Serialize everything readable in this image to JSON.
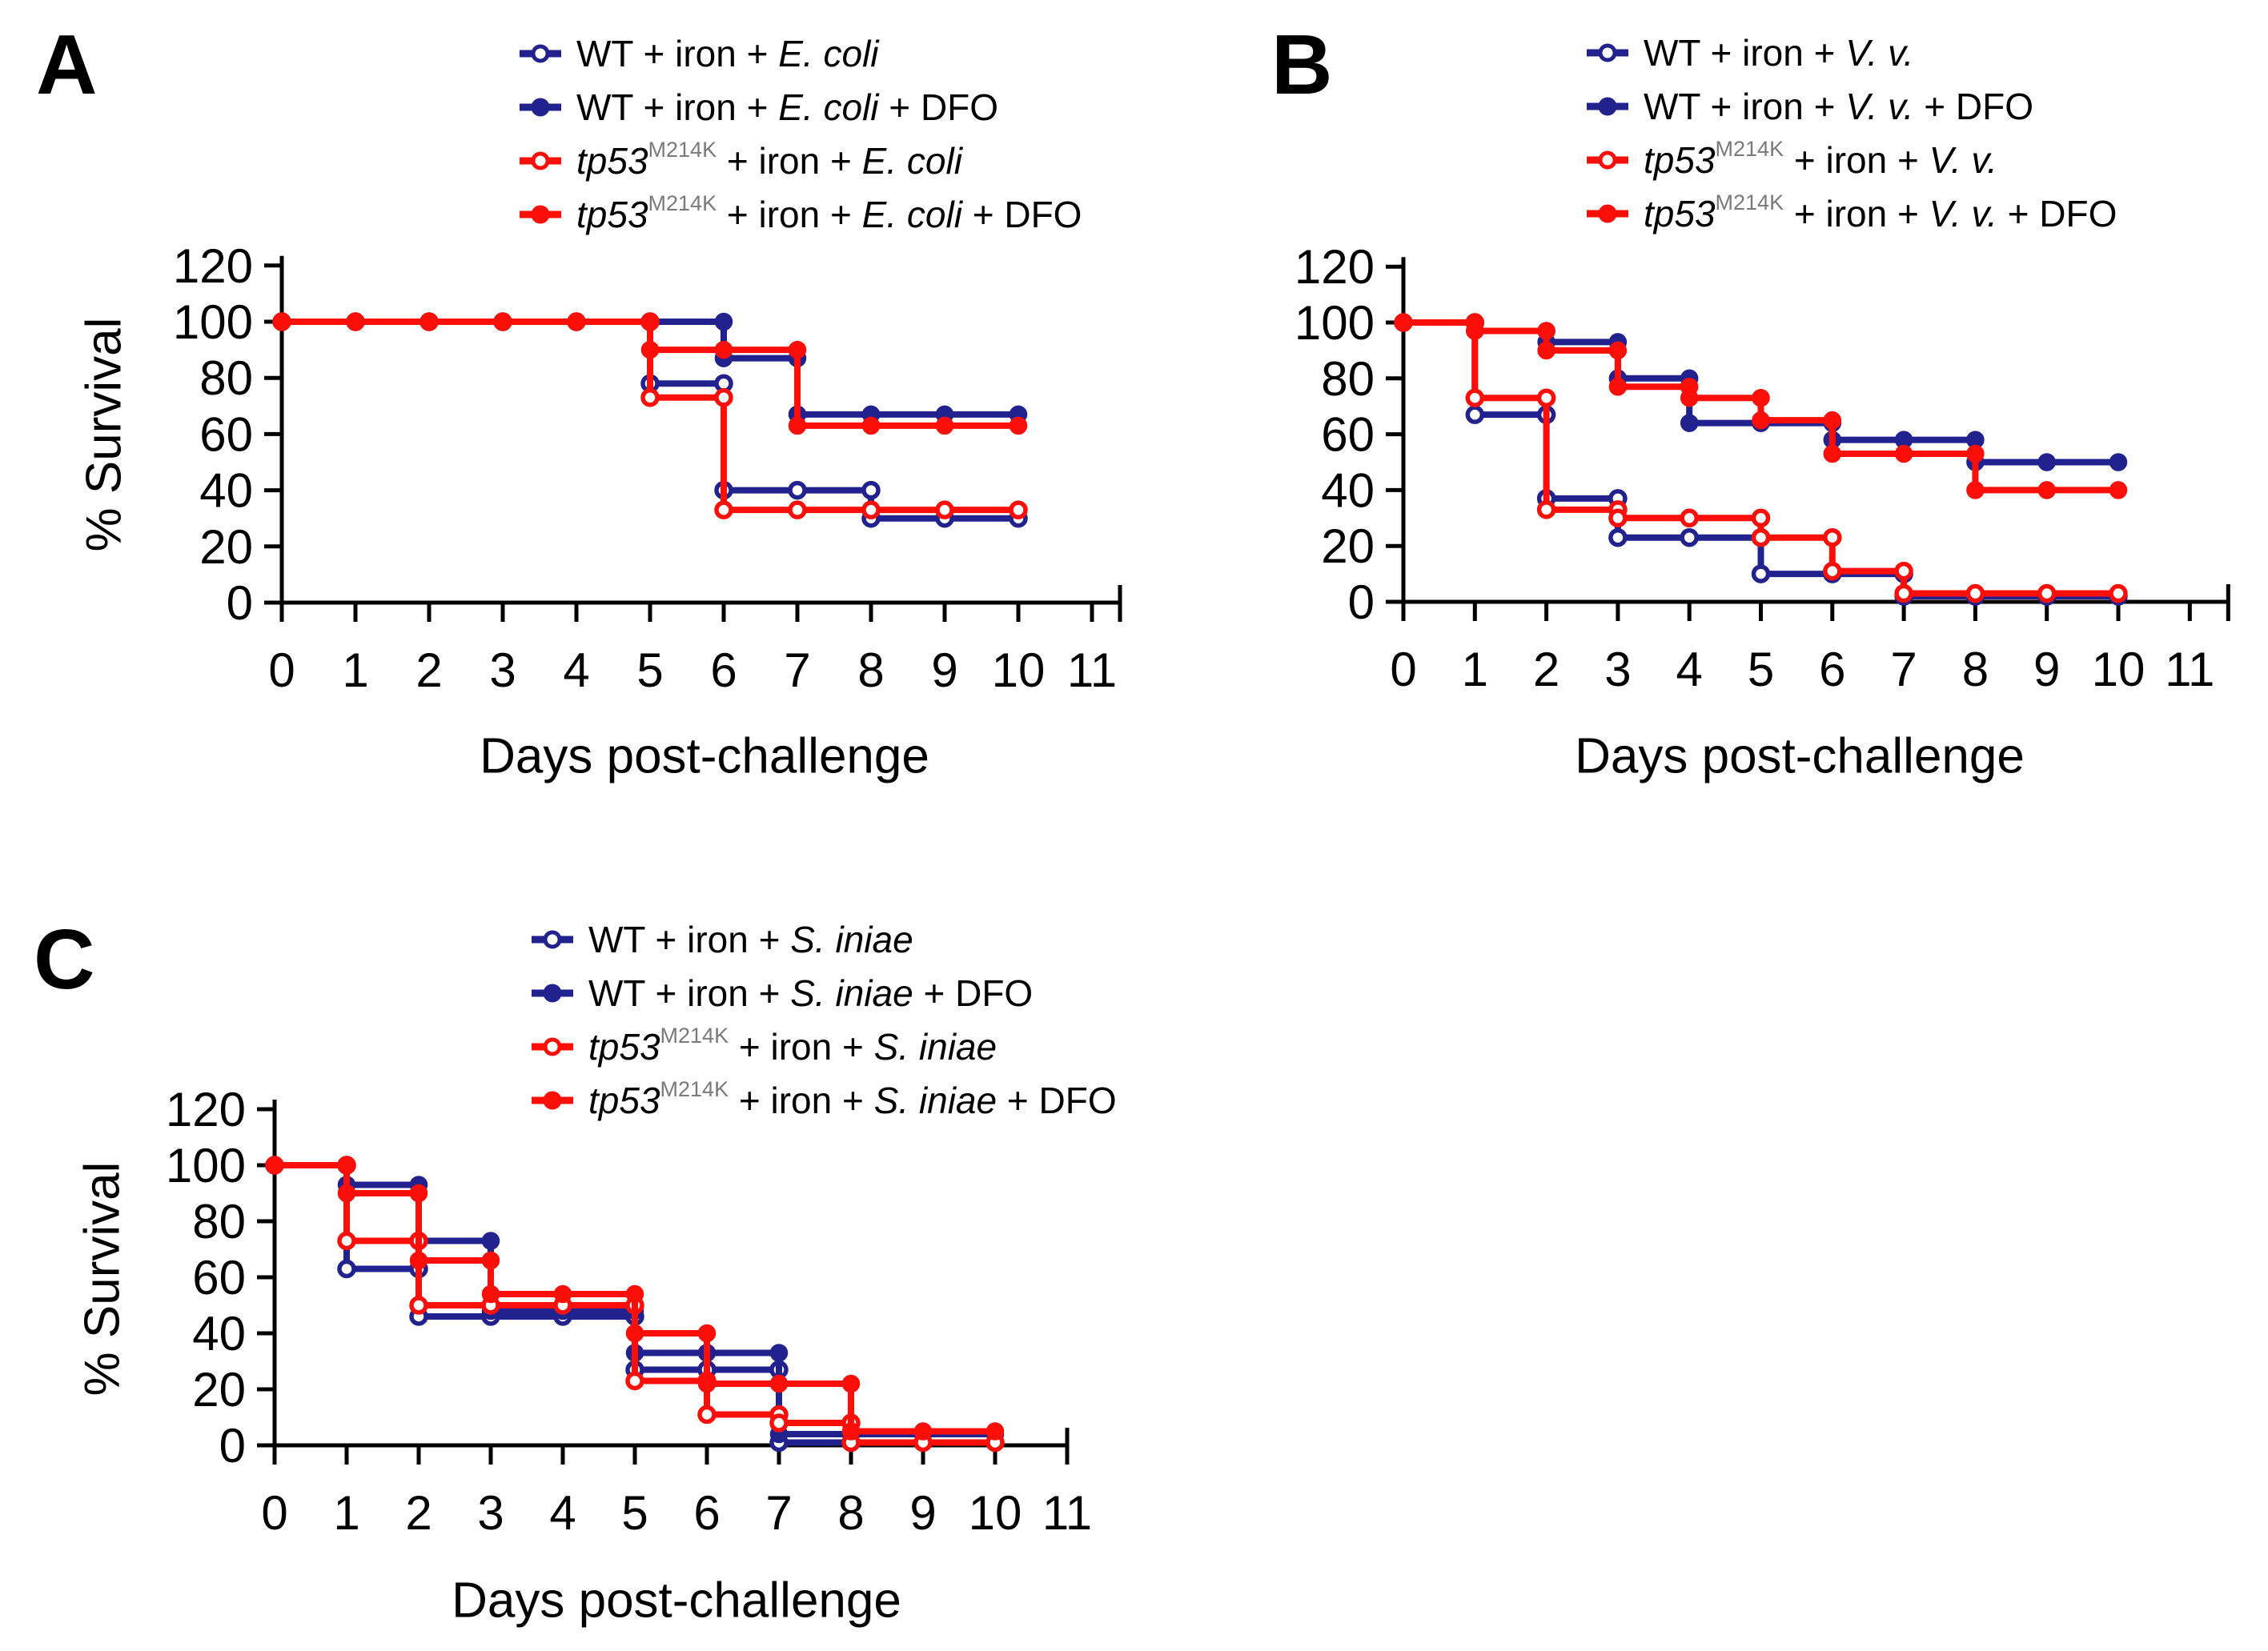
{
  "figure": {
    "description": "Three Kaplan-Meier style survival plots (panels A, B, C) comparing WT and tp53M214K zebrafish given iron and bacterial challenge, with or without DFO.",
    "colors": {
      "wt_navy": "#22228f",
      "mutant_red": "#fb0f08",
      "axis_black": "#000000",
      "background": "#ffffff"
    },
    "panel_letters": [
      "A",
      "B",
      "C"
    ]
  },
  "chart_data": [
    {
      "type": "line",
      "variant": "survival-step",
      "panel_label": "A",
      "xlabel": "Days post-challenge",
      "ylabel": "% Survival",
      "x": [
        0,
        1,
        2,
        3,
        4,
        5,
        6,
        7,
        8,
        9,
        10
      ],
      "xlim": [
        0,
        11
      ],
      "ylim": [
        0,
        120
      ],
      "x_ticks": [
        0,
        1,
        2,
        3,
        4,
        5,
        6,
        7,
        8,
        9,
        10,
        11
      ],
      "y_ticks": [
        0,
        20,
        40,
        60,
        80,
        100,
        120
      ],
      "legend_position": "top",
      "series": [
        {
          "name": "WT + iron + E. coli",
          "color": "#22228f",
          "marker": "open-circle",
          "values": [
            100,
            100,
            100,
            100,
            100,
            78,
            40,
            40,
            30,
            30,
            30
          ],
          "label_segments": [
            {
              "t": "WT + iron + ",
              "s": "n"
            },
            {
              "t": "E. coli",
              "s": "i"
            }
          ]
        },
        {
          "name": "WT + iron + E. coli + DFO",
          "color": "#22228f",
          "marker": "filled-circle",
          "values": [
            100,
            100,
            100,
            100,
            100,
            100,
            87,
            67,
            67,
            67,
            67
          ],
          "label_segments": [
            {
              "t": "WT + iron + ",
              "s": "n"
            },
            {
              "t": "E. coli",
              "s": "i"
            },
            {
              "t": " + DFO",
              "s": "n"
            }
          ]
        },
        {
          "name": "tp53M214K + iron + E. coli",
          "color": "#fb0f08",
          "marker": "open-circle",
          "values": [
            100,
            100,
            100,
            100,
            100,
            73,
            33,
            33,
            33,
            33,
            33
          ],
          "label_segments": [
            {
              "t": "tp53",
              "s": "i"
            },
            {
              "t": "M214K",
              "s": "sup"
            },
            {
              "t": " + iron + ",
              "s": "n"
            },
            {
              "t": "E. coli",
              "s": "i"
            }
          ]
        },
        {
          "name": "tp53M214K + iron + E. coli + DFO",
          "color": "#fb0f08",
          "marker": "filled-circle",
          "values": [
            100,
            100,
            100,
            100,
            100,
            90,
            90,
            63,
            63,
            63,
            63
          ],
          "label_segments": [
            {
              "t": "tp53",
              "s": "i"
            },
            {
              "t": "M214K",
              "s": "sup"
            },
            {
              "t": " + iron + ",
              "s": "n"
            },
            {
              "t": "E. coli",
              "s": "i"
            },
            {
              "t": " + DFO",
              "s": "n"
            }
          ]
        }
      ]
    },
    {
      "type": "line",
      "variant": "survival-step",
      "panel_label": "B",
      "xlabel": "Days post-challenge",
      "ylabel": "",
      "x": [
        0,
        1,
        2,
        3,
        4,
        5,
        6,
        7,
        8,
        9,
        10
      ],
      "xlim": [
        0,
        11
      ],
      "ylim": [
        0,
        120
      ],
      "x_ticks": [
        0,
        1,
        2,
        3,
        4,
        5,
        6,
        7,
        8,
        9,
        10,
        11
      ],
      "y_ticks": [
        0,
        20,
        40,
        60,
        80,
        100,
        120
      ],
      "legend_position": "top",
      "series": [
        {
          "name": "WT + iron + V. v.",
          "color": "#22228f",
          "marker": "open-circle",
          "values": [
            100,
            67,
            37,
            23,
            23,
            10,
            10,
            2,
            2,
            2,
            2
          ],
          "label_segments": [
            {
              "t": "WT + iron + ",
              "s": "n"
            },
            {
              "t": "V. v.",
              "s": "i"
            }
          ]
        },
        {
          "name": "WT + iron + V. v. + DFO",
          "color": "#22228f",
          "marker": "filled-circle",
          "values": [
            100,
            97,
            93,
            80,
            64,
            64,
            58,
            58,
            50,
            50,
            50
          ],
          "label_segments": [
            {
              "t": "WT + iron + ",
              "s": "n"
            },
            {
              "t": "V. v.",
              "s": "i"
            },
            {
              "t": " + DFO",
              "s": "n"
            }
          ]
        },
        {
          "name": "tp53M214K + iron + V. v.",
          "color": "#fb0f08",
          "marker": "open-circle",
          "values": [
            100,
            73,
            33,
            30,
            30,
            23,
            11,
            3,
            3,
            3,
            3
          ],
          "label_segments": [
            {
              "t": "tp53",
              "s": "i"
            },
            {
              "t": "M214K",
              "s": "sup"
            },
            {
              "t": " + iron + ",
              "s": "n"
            },
            {
              "t": "V. v.",
              "s": "i"
            }
          ]
        },
        {
          "name": "tp53M214K + iron + V. v. + DFO",
          "color": "#fb0f08",
          "marker": "filled-circle",
          "values": [
            100,
            97,
            90,
            77,
            73,
            65,
            53,
            53,
            40,
            40,
            40
          ],
          "label_segments": [
            {
              "t": "tp53",
              "s": "i"
            },
            {
              "t": "M214K",
              "s": "sup"
            },
            {
              "t": " + iron + ",
              "s": "n"
            },
            {
              "t": "V. v.",
              "s": "i"
            },
            {
              "t": " + DFO",
              "s": "n"
            }
          ]
        }
      ]
    },
    {
      "type": "line",
      "variant": "survival-step",
      "panel_label": "C",
      "xlabel": "Days post-challenge",
      "ylabel": "% Survival",
      "x": [
        0,
        1,
        2,
        3,
        4,
        5,
        6,
        7,
        8,
        9,
        10
      ],
      "xlim": [
        0,
        11
      ],
      "ylim": [
        0,
        120
      ],
      "x_ticks": [
        0,
        1,
        2,
        3,
        4,
        5,
        6,
        7,
        8,
        9,
        10,
        11
      ],
      "y_ticks": [
        0,
        20,
        40,
        60,
        80,
        100,
        120
      ],
      "legend_position": "top",
      "series": [
        {
          "name": "WT + iron + S. iniae",
          "color": "#22228f",
          "marker": "open-circle",
          "values": [
            100,
            63,
            46,
            46,
            46,
            27,
            27,
            1,
            1,
            1,
            1
          ],
          "label_segments": [
            {
              "t": "WT + iron + ",
              "s": "n"
            },
            {
              "t": "S. iniae",
              "s": "i"
            }
          ]
        },
        {
          "name": "WT + iron + S. iniae + DFO",
          "color": "#22228f",
          "marker": "filled-circle",
          "values": [
            100,
            93,
            73,
            48,
            48,
            33,
            33,
            4,
            4,
            4,
            4
          ],
          "label_segments": [
            {
              "t": "WT + iron + ",
              "s": "n"
            },
            {
              "t": "S. iniae",
              "s": "i"
            },
            {
              "t": " + DFO",
              "s": "n"
            }
          ]
        },
        {
          "name": "tp53M214K + iron + S. iniae",
          "color": "#fb0f08",
          "marker": "open-circle",
          "values": [
            100,
            73,
            50,
            50,
            50,
            23,
            11,
            8,
            1,
            1,
            1
          ],
          "label_segments": [
            {
              "t": "tp53",
              "s": "i"
            },
            {
              "t": "M214K",
              "s": "sup"
            },
            {
              "t": " + iron + ",
              "s": "n"
            },
            {
              "t": "S. iniae",
              "s": "i"
            }
          ]
        },
        {
          "name": "tp53M214K + iron + S. iniae + DFO",
          "color": "#fb0f08",
          "marker": "filled-circle",
          "values": [
            100,
            90,
            66,
            54,
            54,
            40,
            22,
            22,
            5,
            5,
            5
          ],
          "label_segments": [
            {
              "t": "tp53",
              "s": "i"
            },
            {
              "t": "M214K",
              "s": "sup"
            },
            {
              "t": " + iron + ",
              "s": "n"
            },
            {
              "t": "S. iniae",
              "s": "i"
            },
            {
              "t": " + DFO",
              "s": "n"
            }
          ]
        }
      ]
    }
  ]
}
